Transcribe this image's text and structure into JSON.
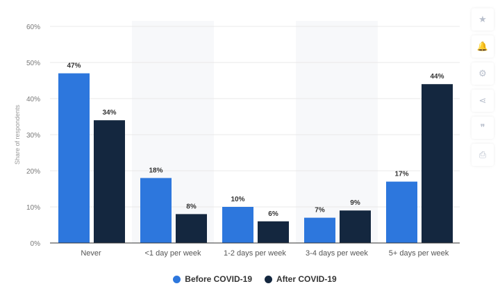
{
  "chart_data": {
    "type": "bar",
    "categories": [
      "Never",
      "<1 day per week",
      "1-2 days per week",
      "3-4 days per week",
      "5+ days per week"
    ],
    "series": [
      {
        "name": "Before COVID-19",
        "values": [
          47,
          18,
          10,
          7,
          17
        ],
        "color": "#2d77dd"
      },
      {
        "name": "After COVID-19",
        "values": [
          34,
          8,
          6,
          9,
          44
        ],
        "color": "#14273f"
      }
    ],
    "ylabel": "Share of respondents",
    "ylim": [
      0,
      60
    ],
    "yticks": [
      "0%",
      "10%",
      "20%",
      "30%",
      "40%",
      "50%",
      "60%"
    ],
    "data_labels": [
      [
        "47%",
        "18%",
        "10%",
        "7%",
        "17%"
      ],
      [
        "34%",
        "8%",
        "6%",
        "9%",
        "44%"
      ]
    ],
    "grid": true,
    "legend_position": "bottom"
  },
  "toolbar": [
    {
      "icon": "star-icon",
      "glyph": "★"
    },
    {
      "icon": "bell-icon",
      "glyph": "🔔"
    },
    {
      "icon": "gear-icon",
      "glyph": "⚙"
    },
    {
      "icon": "share-icon",
      "glyph": "⋖"
    },
    {
      "icon": "quote-icon",
      "glyph": "❞"
    },
    {
      "icon": "print-icon",
      "glyph": "⎙"
    }
  ]
}
